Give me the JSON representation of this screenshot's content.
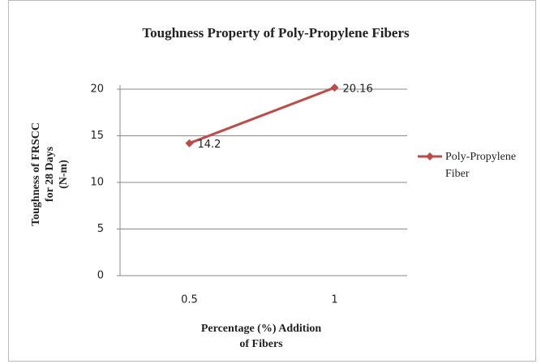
{
  "chart_data": {
    "type": "line",
    "title": "Toughness Property of Poly-Propylene Fibers",
    "x_label": [
      "Percentage (%)  Addition",
      "of Fibers"
    ],
    "y_label": [
      "Toughness  of FRSCC",
      "for 28 Days",
      "(N-m)"
    ],
    "categories": [
      "0.5",
      "1"
    ],
    "series": [
      {
        "name": "Poly-Propylene Fiber",
        "color": "#be4b48",
        "values": [
          14.2,
          20.16
        ]
      }
    ],
    "ylim": [
      0,
      20
    ],
    "yticks": [
      0,
      5,
      10,
      15,
      20
    ],
    "grid": true,
    "legend": "right"
  }
}
